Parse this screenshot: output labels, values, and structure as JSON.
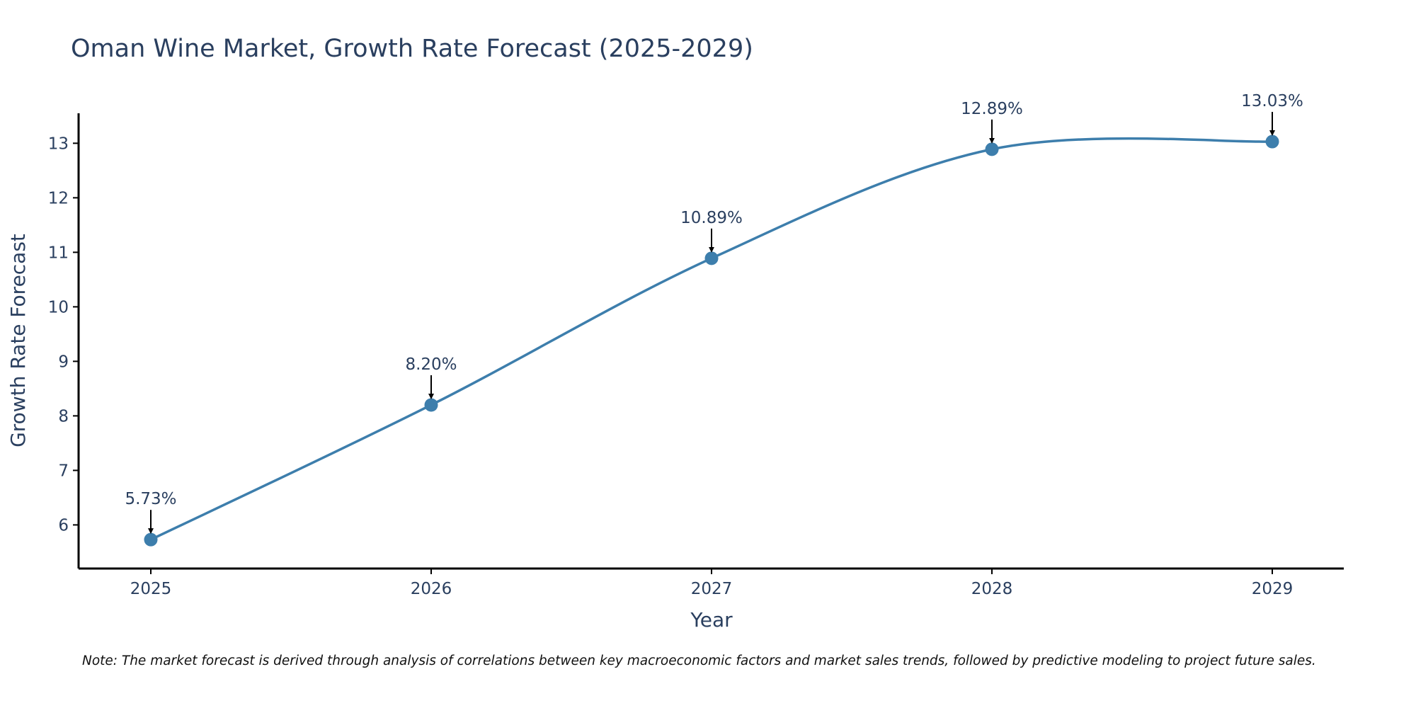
{
  "colors": {
    "series_line": "#3d7eac",
    "series_marker": "#3d7eac",
    "axis_line": "#000000",
    "arrow": "#000000",
    "text": "#2a3f5f"
  },
  "chart_data": {
    "type": "line",
    "title": "Oman Wine Market, Growth Rate Forecast (2025-2029)",
    "xlabel": "Year",
    "ylabel": "Growth Rate Forecast",
    "categories": [
      "2025",
      "2026",
      "2027",
      "2028",
      "2029"
    ],
    "series": [
      {
        "name": "Growth Rate Forecast",
        "values": [
          5.73,
          8.2,
          10.89,
          12.89,
          13.03
        ],
        "labels": [
          "5.73%",
          "8.20%",
          "10.89%",
          "12.89%",
          "13.03%"
        ]
      }
    ],
    "ylim": [
      5.2,
      13.55
    ],
    "yticks": [
      6,
      7,
      8,
      9,
      10,
      11,
      12,
      13
    ],
    "line_shape": "spline",
    "grid": false,
    "legend": "none",
    "note": "Note: The market forecast is derived through analysis of correlations between key macroeconomic factors and market sales trends, followed by predictive modeling to project future sales."
  }
}
